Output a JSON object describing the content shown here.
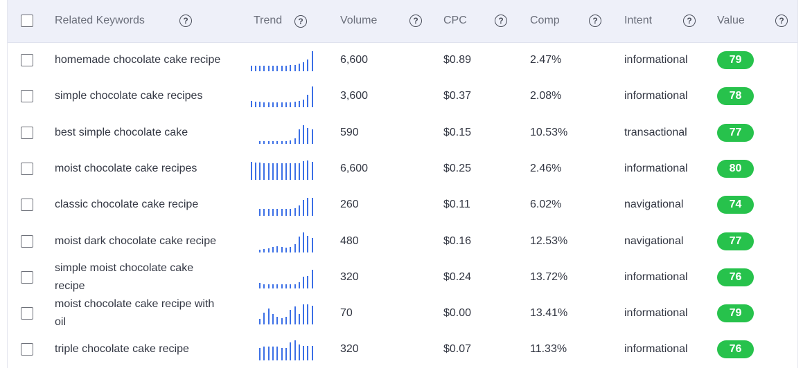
{
  "header": {
    "columns": {
      "keyword": "Related Keywords",
      "trend": "Trend",
      "volume": "Volume",
      "cpc": "CPC",
      "comp": "Comp",
      "intent": "Intent",
      "value": "Value"
    },
    "help_glyph": "?"
  },
  "rows": [
    {
      "keyword": "homemade chocolate cake recipe",
      "volume": "6,600",
      "cpc": "$0.89",
      "comp": "2.47%",
      "intent": "informational",
      "value": "79",
      "trend": [
        0.28,
        0.28,
        0.28,
        0.28,
        0.28,
        0.28,
        0.28,
        0.28,
        0.28,
        0.3,
        0.3,
        0.38,
        0.42,
        0.55,
        0.95
      ]
    },
    {
      "keyword": "simple chocolate cake recipes",
      "volume": "3,600",
      "cpc": "$0.37",
      "comp": "2.08%",
      "intent": "informational",
      "value": "78",
      "trend": [
        0.3,
        0.25,
        0.25,
        0.22,
        0.22,
        0.22,
        0.22,
        0.22,
        0.22,
        0.22,
        0.25,
        0.3,
        0.35,
        0.6,
        1.0
      ]
    },
    {
      "keyword": "best simple chocolate cake",
      "volume": "590",
      "cpc": "$0.15",
      "comp": "10.53%",
      "intent": "transactional",
      "value": "77",
      "trend": [
        0.12,
        0.12,
        0.12,
        0.12,
        0.12,
        0.12,
        0.12,
        0.18,
        0.25,
        0.7,
        0.9,
        0.75,
        0.7
      ]
    },
    {
      "keyword": "moist chocolate cake recipes",
      "volume": "6,600",
      "cpc": "$0.25",
      "comp": "2.46%",
      "intent": "informational",
      "value": "80",
      "trend": [
        0.88,
        0.82,
        0.82,
        0.8,
        0.8,
        0.8,
        0.8,
        0.8,
        0.8,
        0.8,
        0.8,
        0.8,
        0.9,
        0.92,
        0.88
      ]
    },
    {
      "keyword": "classic chocolate cake recipe",
      "volume": "260",
      "cpc": "$0.11",
      "comp": "6.02%",
      "intent": "navigational",
      "value": "74",
      "trend": [
        0.32,
        0.32,
        0.32,
        0.32,
        0.32,
        0.32,
        0.32,
        0.32,
        0.38,
        0.5,
        0.75,
        0.88,
        0.88
      ]
    },
    {
      "keyword": "moist dark chocolate cake recipe",
      "volume": "480",
      "cpc": "$0.16",
      "comp": "12.53%",
      "intent": "navigational",
      "value": "77",
      "trend": [
        0.12,
        0.15,
        0.2,
        0.25,
        0.3,
        0.25,
        0.22,
        0.25,
        0.4,
        0.75,
        0.95,
        0.8,
        0.7
      ]
    },
    {
      "keyword": "simple moist chocolate cake recipe",
      "volume": "320",
      "cpc": "$0.24",
      "comp": "13.72%",
      "intent": "informational",
      "value": "76",
      "trend": [
        0.25,
        0.2,
        0.2,
        0.2,
        0.2,
        0.2,
        0.2,
        0.2,
        0.2,
        0.3,
        0.55,
        0.6,
        0.9
      ]
    },
    {
      "keyword": "moist chocolate cake recipe with oil",
      "volume": "70",
      "cpc": "$0.00",
      "comp": "13.41%",
      "intent": "informational",
      "value": "79",
      "trend": [
        0.25,
        0.55,
        0.75,
        0.5,
        0.35,
        0.3,
        0.35,
        0.7,
        0.85,
        0.5,
        0.95,
        0.95,
        0.9
      ]
    },
    {
      "keyword": "triple chocolate cake recipe",
      "volume": "320",
      "cpc": "$0.07",
      "comp": "11.33%",
      "intent": "informational",
      "value": "76",
      "trend": [
        0.6,
        0.65,
        0.65,
        0.65,
        0.65,
        0.6,
        0.6,
        0.85,
        0.95,
        0.75,
        0.7,
        0.7,
        0.7
      ]
    }
  ],
  "colors": {
    "header_bg": "#eef0f9",
    "trend_bar": "#3b6fe6",
    "badge_green": "#27c24c",
    "text": "#333743",
    "header_text": "#6b6f7b"
  }
}
